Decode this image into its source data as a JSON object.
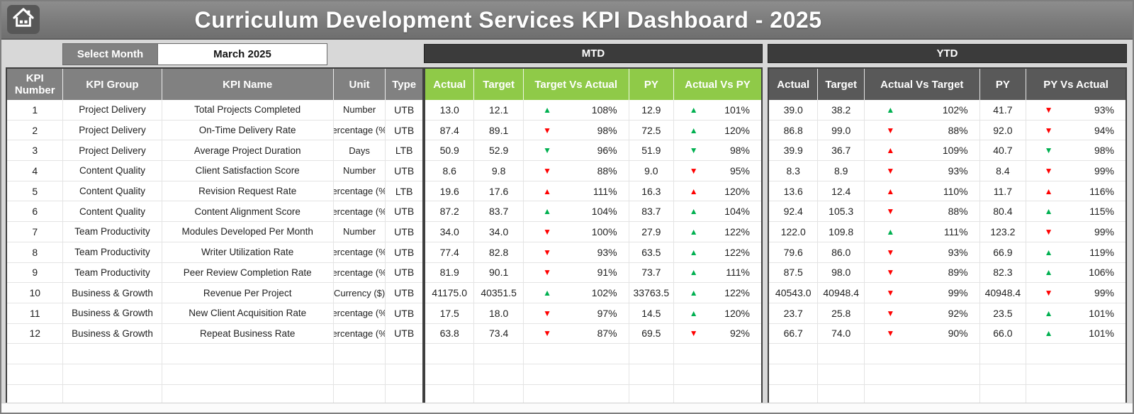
{
  "window": {
    "title": "Curriculum Development Services KPI Dashboard - 2025"
  },
  "controls": {
    "select_month_label": "Select Month",
    "select_month_value": "March 2025"
  },
  "sections": {
    "mtd_label": "MTD",
    "ytd_label": "YTD"
  },
  "left_table": {
    "headers": [
      "KPI Number",
      "KPI Group",
      "KPI Name",
      "Unit",
      "Type"
    ]
  },
  "mtd_table": {
    "headers": [
      "Actual",
      "Target",
      "Target Vs Actual",
      "PY",
      "Actual Vs PY"
    ]
  },
  "ytd_table": {
    "headers": [
      "Actual",
      "Target",
      "Actual Vs Target",
      "PY",
      "PY Vs Actual"
    ]
  },
  "icons": {
    "up": "▲",
    "down": "▼"
  },
  "colors": {
    "green": "#00B050",
    "red": "#FF0000",
    "mtd_header": "#8FCA48",
    "ytd_header": "#595959",
    "left_header": "#818181"
  },
  "empty_row_count": 4,
  "rows": [
    {
      "num": "1",
      "group": "Project Delivery",
      "name": "Total Projects Completed",
      "unit": "Number",
      "type": "UTB",
      "mtd": {
        "actual": "13.0",
        "target": "12.1",
        "tva": {
          "dir": "up",
          "color": "green",
          "pct": "108%"
        },
        "py": "12.9",
        "avp": {
          "dir": "up",
          "color": "green",
          "pct": "101%"
        }
      },
      "ytd": {
        "actual": "39.0",
        "target": "38.2",
        "avt": {
          "dir": "up",
          "color": "green",
          "pct": "102%"
        },
        "py": "41.7",
        "pva": {
          "dir": "down",
          "color": "red",
          "pct": "93%"
        }
      }
    },
    {
      "num": "2",
      "group": "Project Delivery",
      "name": "On-Time Delivery Rate",
      "unit": "ercentage (%",
      "type": "UTB",
      "mtd": {
        "actual": "87.4",
        "target": "89.1",
        "tva": {
          "dir": "down",
          "color": "red",
          "pct": "98%"
        },
        "py": "72.5",
        "avp": {
          "dir": "up",
          "color": "green",
          "pct": "120%"
        }
      },
      "ytd": {
        "actual": "86.8",
        "target": "99.0",
        "avt": {
          "dir": "down",
          "color": "red",
          "pct": "88%"
        },
        "py": "92.0",
        "pva": {
          "dir": "down",
          "color": "red",
          "pct": "94%"
        }
      }
    },
    {
      "num": "3",
      "group": "Project Delivery",
      "name": "Average Project Duration",
      "unit": "Days",
      "type": "LTB",
      "mtd": {
        "actual": "50.9",
        "target": "52.9",
        "tva": {
          "dir": "down",
          "color": "green",
          "pct": "96%"
        },
        "py": "51.9",
        "avp": {
          "dir": "down",
          "color": "green",
          "pct": "98%"
        }
      },
      "ytd": {
        "actual": "39.9",
        "target": "36.7",
        "avt": {
          "dir": "up",
          "color": "red",
          "pct": "109%"
        },
        "py": "40.7",
        "pva": {
          "dir": "down",
          "color": "green",
          "pct": "98%"
        }
      }
    },
    {
      "num": "4",
      "group": "Content Quality",
      "name": "Client Satisfaction Score",
      "unit": "Number",
      "type": "UTB",
      "mtd": {
        "actual": "8.6",
        "target": "9.8",
        "tva": {
          "dir": "down",
          "color": "red",
          "pct": "88%"
        },
        "py": "9.0",
        "avp": {
          "dir": "down",
          "color": "red",
          "pct": "95%"
        }
      },
      "ytd": {
        "actual": "8.3",
        "target": "8.9",
        "avt": {
          "dir": "down",
          "color": "red",
          "pct": "93%"
        },
        "py": "8.4",
        "pva": {
          "dir": "down",
          "color": "red",
          "pct": "99%"
        }
      }
    },
    {
      "num": "5",
      "group": "Content Quality",
      "name": "Revision Request Rate",
      "unit": "ercentage (%",
      "type": "LTB",
      "mtd": {
        "actual": "19.6",
        "target": "17.6",
        "tva": {
          "dir": "up",
          "color": "red",
          "pct": "111%"
        },
        "py": "16.3",
        "avp": {
          "dir": "up",
          "color": "red",
          "pct": "120%"
        }
      },
      "ytd": {
        "actual": "13.6",
        "target": "12.4",
        "avt": {
          "dir": "up",
          "color": "red",
          "pct": "110%"
        },
        "py": "11.7",
        "pva": {
          "dir": "up",
          "color": "red",
          "pct": "116%"
        }
      }
    },
    {
      "num": "6",
      "group": "Content Quality",
      "name": "Content Alignment Score",
      "unit": "ercentage (%",
      "type": "UTB",
      "mtd": {
        "actual": "87.2",
        "target": "83.7",
        "tva": {
          "dir": "up",
          "color": "green",
          "pct": "104%"
        },
        "py": "83.7",
        "avp": {
          "dir": "up",
          "color": "green",
          "pct": "104%"
        }
      },
      "ytd": {
        "actual": "92.4",
        "target": "105.3",
        "avt": {
          "dir": "down",
          "color": "red",
          "pct": "88%"
        },
        "py": "80.4",
        "pva": {
          "dir": "up",
          "color": "green",
          "pct": "115%"
        }
      }
    },
    {
      "num": "7",
      "group": "Team Productivity",
      "name": "Modules Developed Per Month",
      "unit": "Number",
      "type": "UTB",
      "mtd": {
        "actual": "34.0",
        "target": "34.0",
        "tva": {
          "dir": "down",
          "color": "red",
          "pct": "100%"
        },
        "py": "27.9",
        "avp": {
          "dir": "up",
          "color": "green",
          "pct": "122%"
        }
      },
      "ytd": {
        "actual": "122.0",
        "target": "109.8",
        "avt": {
          "dir": "up",
          "color": "green",
          "pct": "111%"
        },
        "py": "123.2",
        "pva": {
          "dir": "down",
          "color": "red",
          "pct": "99%"
        }
      }
    },
    {
      "num": "8",
      "group": "Team Productivity",
      "name": "Writer Utilization Rate",
      "unit": "ercentage (%",
      "type": "UTB",
      "mtd": {
        "actual": "77.4",
        "target": "82.8",
        "tva": {
          "dir": "down",
          "color": "red",
          "pct": "93%"
        },
        "py": "63.5",
        "avp": {
          "dir": "up",
          "color": "green",
          "pct": "122%"
        }
      },
      "ytd": {
        "actual": "79.6",
        "target": "86.0",
        "avt": {
          "dir": "down",
          "color": "red",
          "pct": "93%"
        },
        "py": "66.9",
        "pva": {
          "dir": "up",
          "color": "green",
          "pct": "119%"
        }
      }
    },
    {
      "num": "9",
      "group": "Team Productivity",
      "name": "Peer Review Completion Rate",
      "unit": "ercentage (%",
      "type": "UTB",
      "mtd": {
        "actual": "81.9",
        "target": "90.1",
        "tva": {
          "dir": "down",
          "color": "red",
          "pct": "91%"
        },
        "py": "73.7",
        "avp": {
          "dir": "up",
          "color": "green",
          "pct": "111%"
        }
      },
      "ytd": {
        "actual": "87.5",
        "target": "98.0",
        "avt": {
          "dir": "down",
          "color": "red",
          "pct": "89%"
        },
        "py": "82.3",
        "pva": {
          "dir": "up",
          "color": "green",
          "pct": "106%"
        }
      }
    },
    {
      "num": "10",
      "group": "Business & Growth",
      "name": "Revenue Per Project",
      "unit": "Currency ($)",
      "type": "UTB",
      "mtd": {
        "actual": "41175.0",
        "target": "40351.5",
        "tva": {
          "dir": "up",
          "color": "green",
          "pct": "102%"
        },
        "py": "33763.5",
        "avp": {
          "dir": "up",
          "color": "green",
          "pct": "122%"
        }
      },
      "ytd": {
        "actual": "40543.0",
        "target": "40948.4",
        "avt": {
          "dir": "down",
          "color": "red",
          "pct": "99%"
        },
        "py": "40948.4",
        "pva": {
          "dir": "down",
          "color": "red",
          "pct": "99%"
        }
      }
    },
    {
      "num": "11",
      "group": "Business & Growth",
      "name": "New Client Acquisition Rate",
      "unit": "ercentage (%",
      "type": "UTB",
      "mtd": {
        "actual": "17.5",
        "target": "18.0",
        "tva": {
          "dir": "down",
          "color": "red",
          "pct": "97%"
        },
        "py": "14.5",
        "avp": {
          "dir": "up",
          "color": "green",
          "pct": "120%"
        }
      },
      "ytd": {
        "actual": "23.7",
        "target": "25.8",
        "avt": {
          "dir": "down",
          "color": "red",
          "pct": "92%"
        },
        "py": "23.5",
        "pva": {
          "dir": "up",
          "color": "green",
          "pct": "101%"
        }
      }
    },
    {
      "num": "12",
      "group": "Business & Growth",
      "name": "Repeat Business Rate",
      "unit": "ercentage (%",
      "type": "UTB",
      "mtd": {
        "actual": "63.8",
        "target": "73.4",
        "tva": {
          "dir": "down",
          "color": "red",
          "pct": "87%"
        },
        "py": "69.5",
        "avp": {
          "dir": "down",
          "color": "red",
          "pct": "92%"
        }
      },
      "ytd": {
        "actual": "66.7",
        "target": "74.0",
        "avt": {
          "dir": "down",
          "color": "red",
          "pct": "90%"
        },
        "py": "66.0",
        "pva": {
          "dir": "up",
          "color": "green",
          "pct": "101%"
        }
      }
    }
  ]
}
